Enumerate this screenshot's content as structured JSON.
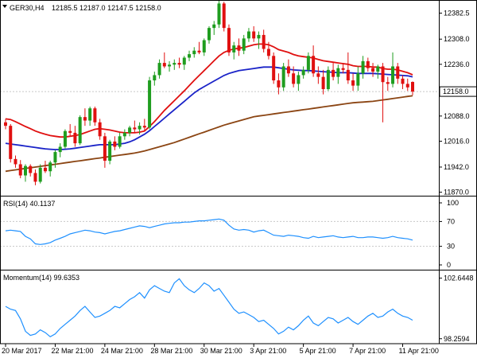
{
  "chart_data": {
    "type": "candlestick",
    "symbol_label": "GER30,H4",
    "ohlc_label": "12185.5 12187.0 12147.5 12158.0",
    "price_axis": {
      "ticks": [
        12382.5,
        12308.0,
        12236.0,
        12088.0,
        12016.0,
        11942.0,
        11870.0
      ],
      "range": [
        11860,
        12420
      ]
    },
    "current_price": {
      "label": "12158.0",
      "value": 12158.0
    },
    "time_labels": [
      {
        "i": 0,
        "text": "20 Mar 2017"
      },
      {
        "i": 10,
        "text": "22 Mar 21:00"
      },
      {
        "i": 20,
        "text": "24 Mar 21:00"
      },
      {
        "i": 30,
        "text": "28 Mar 21:00"
      },
      {
        "i": 40,
        "text": "30 Mar 21:00"
      },
      {
        "i": 50,
        "text": "3 Apr 21:00"
      },
      {
        "i": 60,
        "text": "5 Apr 21:00"
      },
      {
        "i": 70,
        "text": "7 Apr 21:00"
      },
      {
        "i": 80,
        "text": "11 Apr 21:00"
      }
    ],
    "candles": [
      [
        12070,
        12080,
        12050,
        12060
      ],
      [
        12060,
        12065,
        11955,
        11965
      ],
      [
        11965,
        11975,
        11940,
        11950
      ],
      [
        11950,
        11962,
        11910,
        11918
      ],
      [
        11918,
        11950,
        11900,
        11945
      ],
      [
        11945,
        11950,
        11915,
        11925
      ],
      [
        11925,
        11935,
        11890,
        11900
      ],
      [
        11900,
        11950,
        11895,
        11940
      ],
      [
        11940,
        11960,
        11925,
        11930
      ],
      [
        11930,
        11960,
        11915,
        11955
      ],
      [
        11955,
        11990,
        11940,
        11985
      ],
      [
        11985,
        12010,
        11970,
        12000
      ],
      [
        12000,
        12050,
        11995,
        12045
      ],
      [
        12045,
        12065,
        12030,
        12040
      ],
      [
        12040,
        12060,
        12000,
        12010
      ],
      [
        12010,
        12090,
        12005,
        12085
      ],
      [
        12085,
        12110,
        12060,
        12075
      ],
      [
        12075,
        12115,
        12060,
        12110
      ],
      [
        12110,
        12115,
        12060,
        12070
      ],
      [
        12070,
        12080,
        12020,
        12030
      ],
      [
        12030,
        12040,
        11940,
        11960
      ],
      [
        11960,
        12020,
        11950,
        12015
      ],
      [
        12015,
        12030,
        11990,
        12000
      ],
      [
        12000,
        12040,
        11995,
        12030
      ],
      [
        12030,
        12050,
        12020,
        12040
      ],
      [
        12040,
        12060,
        12030,
        12055
      ],
      [
        12055,
        12075,
        12040,
        12050
      ],
      [
        12050,
        12070,
        12035,
        12060
      ],
      [
        12060,
        12080,
        12045,
        12055
      ],
      [
        12055,
        12200,
        12050,
        12190
      ],
      [
        12190,
        12215,
        12175,
        12205
      ],
      [
        12205,
        12250,
        12195,
        12240
      ],
      [
        12240,
        12270,
        12225,
        12230
      ],
      [
        12230,
        12245,
        12215,
        12235
      ],
      [
        12235,
        12250,
        12220,
        12240
      ],
      [
        12240,
        12255,
        12225,
        12235
      ],
      [
        12235,
        12260,
        12220,
        12255
      ],
      [
        12255,
        12275,
        12245,
        12265
      ],
      [
        12265,
        12285,
        12255,
        12275
      ],
      [
        12275,
        12300,
        12265,
        12270
      ],
      [
        12270,
        12310,
        12260,
        12305
      ],
      [
        12305,
        12345,
        12295,
        12340
      ],
      [
        12340,
        12360,
        12320,
        12350
      ],
      [
        12350,
        12420,
        12340,
        12410
      ],
      [
        12410,
        12415,
        12330,
        12340
      ],
      [
        12340,
        12350,
        12260,
        12270
      ],
      [
        12270,
        12300,
        12250,
        12290
      ],
      [
        12290,
        12310,
        12260,
        12275
      ],
      [
        12275,
        12320,
        12265,
        12310
      ],
      [
        12310,
        12340,
        12300,
        12330
      ],
      [
        12330,
        12345,
        12300,
        12310
      ],
      [
        12310,
        12330,
        12280,
        12320
      ],
      [
        12320,
        12335,
        12270,
        12280
      ],
      [
        12280,
        12300,
        12250,
        12260
      ],
      [
        12260,
        12270,
        12180,
        12190
      ],
      [
        12190,
        12210,
        12150,
        12170
      ],
      [
        12170,
        12240,
        12160,
        12230
      ],
      [
        12230,
        12250,
        12200,
        12210
      ],
      [
        12210,
        12230,
        12170,
        12180
      ],
      [
        12180,
        12215,
        12160,
        12205
      ],
      [
        12205,
        12230,
        12195,
        12220
      ],
      [
        12220,
        12270,
        12210,
        12260
      ],
      [
        12260,
        12290,
        12200,
        12210
      ],
      [
        12210,
        12230,
        12180,
        12200
      ],
      [
        12200,
        12220,
        12150,
        12165
      ],
      [
        12165,
        12230,
        12160,
        12220
      ],
      [
        12220,
        12240,
        12190,
        12200
      ],
      [
        12200,
        12235,
        12180,
        12225
      ],
      [
        12225,
        12240,
        12210,
        12220
      ],
      [
        12220,
        12270,
        12180,
        12190
      ],
      [
        12190,
        12210,
        12160,
        12175
      ],
      [
        12175,
        12230,
        12160,
        12210
      ],
      [
        12210,
        12260,
        12195,
        12245
      ],
      [
        12245,
        12255,
        12215,
        12225
      ],
      [
        12225,
        12240,
        12200,
        12215
      ],
      [
        12215,
        12235,
        12195,
        12230
      ],
      [
        12230,
        12240,
        12070,
        12185
      ],
      [
        12185,
        12200,
        12160,
        12180
      ],
      [
        12180,
        12270,
        12170,
        12230
      ],
      [
        12230,
        12240,
        12180,
        12195
      ],
      [
        12195,
        12205,
        12165,
        12180
      ],
      [
        12180,
        12195,
        12160,
        12170
      ],
      [
        12185.5,
        12187,
        12147.5,
        12158
      ]
    ],
    "ma_red": [
      12080,
      12078,
      12072,
      12065,
      12058,
      12052,
      12045,
      12040,
      12036,
      12032,
      12030,
      12028,
      12028,
      12030,
      12032,
      12035,
      12040,
      12045,
      12050,
      12052,
      12050,
      12048,
      12045,
      12042,
      12040,
      12040,
      12040,
      12042,
      12045,
      12058,
      12072,
      12088,
      12104,
      12118,
      12132,
      12146,
      12160,
      12175,
      12190,
      12204,
      12218,
      12232,
      12246,
      12260,
      12270,
      12276,
      12280,
      12282,
      12284,
      12288,
      12292,
      12294,
      12294,
      12292,
      12286,
      12278,
      12274,
      12270,
      12264,
      12260,
      12258,
      12256,
      12254,
      12250,
      12246,
      12244,
      12242,
      12240,
      12238,
      12236,
      12232,
      12230,
      12230,
      12230,
      12228,
      12228,
      12224,
      12222,
      12222,
      12220,
      12216,
      12212,
      12206
    ],
    "ma_blue": [
      12010,
      12008,
      12006,
      12004,
      12002,
      12000,
      11998,
      11996,
      11994,
      11993,
      11992,
      11992,
      11993,
      11994,
      11996,
      11998,
      12000,
      12002,
      12004,
      12006,
      12006,
      12006,
      12006,
      12008,
      12010,
      12014,
      12020,
      12028,
      12036,
      12046,
      12058,
      12070,
      12082,
      12094,
      12106,
      12118,
      12130,
      12142,
      12154,
      12164,
      12172,
      12180,
      12188,
      12196,
      12204,
      12210,
      12214,
      12218,
      12220,
      12222,
      12224,
      12226,
      12228,
      12228,
      12228,
      12226,
      12224,
      12222,
      12220,
      12219,
      12218,
      12218,
      12217,
      12216,
      12215,
      12214,
      12213,
      12212,
      12212,
      12212,
      12211,
      12210,
      12210,
      12210,
      12210,
      12209,
      12208,
      12207,
      12206,
      12205,
      12204,
      12203,
      12200
    ],
    "ma_brown": [
      11930,
      11932,
      11934,
      11936,
      11938,
      11940,
      11942,
      11944,
      11946,
      11948,
      11950,
      11952,
      11954,
      11956,
      11958,
      11960,
      11962,
      11964,
      11966,
      11968,
      11970,
      11972,
      11974,
      11976,
      11978,
      11980,
      11982,
      11985,
      11988,
      11992,
      11996,
      12000,
      12004,
      12008,
      12012,
      12017,
      12022,
      12027,
      12032,
      12037,
      12042,
      12047,
      12052,
      12057,
      12062,
      12066,
      12070,
      12074,
      12078,
      12082,
      12086,
      12088,
      12090,
      12092,
      12094,
      12096,
      12098,
      12100,
      12102,
      12104,
      12106,
      12108,
      12110,
      12112,
      12114,
      12116,
      12118,
      12120,
      12122,
      12124,
      12126,
      12127,
      12128,
      12129,
      12130,
      12132,
      12134,
      12136,
      12138,
      12140,
      12142,
      12144,
      12146
    ],
    "rsi": {
      "label": "RSI(14) 40.1137",
      "ticks": [
        100,
        70,
        30,
        0
      ],
      "levels": [
        70,
        30
      ],
      "values": [
        55,
        56,
        55,
        54,
        46,
        42,
        34,
        33,
        34,
        36,
        40,
        43,
        46,
        50,
        52,
        54,
        56,
        55,
        53,
        52,
        50,
        52,
        54,
        55,
        57,
        59,
        61,
        63,
        62,
        60,
        62,
        64,
        66,
        67,
        68,
        68,
        69,
        69,
        70,
        71,
        71,
        72,
        73,
        74,
        72,
        64,
        58,
        56,
        57,
        56,
        53,
        55,
        56,
        52,
        48,
        47,
        46,
        48,
        47,
        46,
        44,
        43,
        46,
        44,
        45,
        46,
        47,
        45,
        44,
        45,
        46,
        44,
        44,
        45,
        45,
        44,
        43,
        44,
        46,
        44,
        43,
        42,
        40
      ]
    },
    "momentum": {
      "label": "Momentum(14) 99.6353",
      "ticks": [
        102.6448,
        98.2594
      ],
      "range": [
        97.9,
        103.2
      ],
      "values": [
        100.6,
        100.4,
        100.3,
        99.7,
        98.8,
        98.5,
        98.6,
        98.9,
        98.7,
        98.4,
        98.6,
        99,
        99.3,
        99.6,
        99.9,
        100.3,
        100.6,
        100.2,
        99.8,
        99.9,
        100.1,
        100.3,
        100.6,
        100.5,
        100.8,
        101.1,
        101.3,
        101.6,
        101.2,
        101.8,
        102.1,
        101.9,
        101.7,
        101.6,
        102.3,
        102.6,
        102.1,
        101.8,
        101.6,
        101.9,
        102.3,
        102.1,
        101.7,
        101.9,
        101.4,
        100.9,
        100.4,
        100.1,
        100.2,
        100,
        99.8,
        99.5,
        99.6,
        99.3,
        99,
        98.6,
        98.8,
        99.1,
        98.9,
        99.2,
        99.6,
        99.9,
        99.4,
        99.2,
        99.5,
        99.8,
        99.7,
        99.4,
        99.6,
        99.8,
        99.5,
        99.3,
        99.6,
        99.9,
        100.1,
        99.8,
        99.9,
        100.2,
        100.4,
        100.1,
        99.9,
        99.8,
        99.6
      ]
    }
  }
}
